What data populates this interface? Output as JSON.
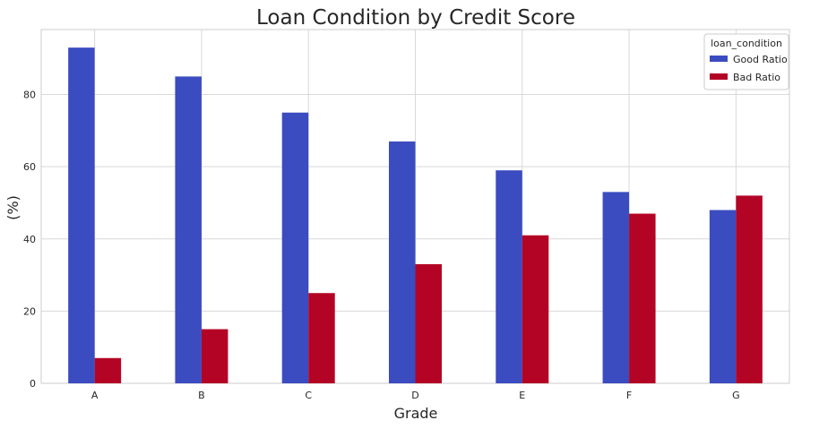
{
  "chart_data": {
    "type": "bar",
    "title": "Loan Condition by Credit Score",
    "xlabel": "Grade",
    "ylabel": "(%)",
    "categories": [
      "A",
      "B",
      "C",
      "D",
      "E",
      "F",
      "G"
    ],
    "series": [
      {
        "name": "Good Ratio",
        "color": "#3b4cc0",
        "values": [
          93,
          85,
          75,
          67,
          59,
          53,
          48
        ]
      },
      {
        "name": "Bad Ratio",
        "color": "#b40426",
        "values": [
          7,
          15,
          25,
          33,
          41,
          47,
          52
        ]
      }
    ],
    "ylim": [
      0,
      98
    ],
    "yticks": [
      "0",
      "20",
      "40",
      "60",
      "80"
    ],
    "grid": true,
    "legend": {
      "title": "loan_condition",
      "placement": "top-right"
    }
  }
}
